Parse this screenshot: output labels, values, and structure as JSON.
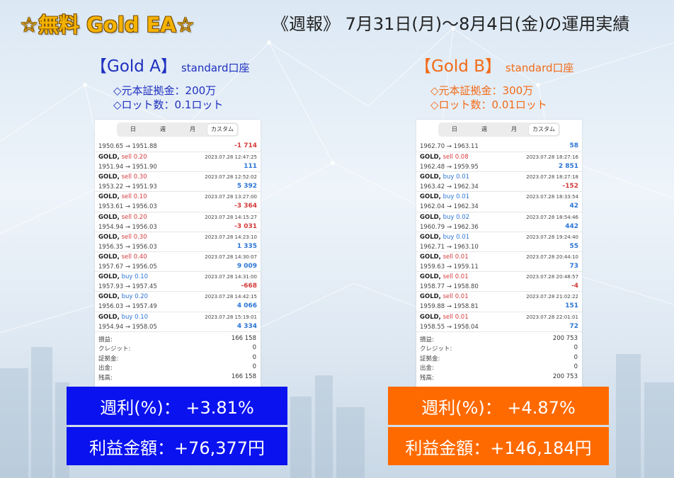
{
  "header": {
    "title_left": "☆無料 Gold EA☆",
    "title_right": "《週報》 7月31日(月)～8月4日(金)の運用実績"
  },
  "colors": {
    "gold_a": "#1e2fbf",
    "gold_b": "#f26a17",
    "box_a": "#0a12f0",
    "box_b": "#ff6a00"
  },
  "accounts": [
    {
      "name": "【Gold A】",
      "type": "standard口座",
      "margin_line": "◇元本証拠金：200万",
      "lot_line": "◇ロット数：0.1ロット",
      "tabs": [
        "日",
        "週",
        "月",
        "カスタム"
      ],
      "first_partial": {
        "prices": "1950.65 → 1951.88",
        "profit": "-1 714"
      },
      "trades": [
        {
          "symbol": "GOLD,",
          "side": "sell 0.20",
          "dir": "sell",
          "datetime": "2023.07.28 12:47:25",
          "prices": "1951.94 → 1951.90",
          "profit": "111"
        },
        {
          "symbol": "GOLD,",
          "side": "sell 0.30",
          "dir": "sell",
          "datetime": "2023.07.28 12:52:02",
          "prices": "1953.22 → 1951.93",
          "profit": "5 392"
        },
        {
          "symbol": "GOLD,",
          "side": "sell 0.10",
          "dir": "sell",
          "datetime": "2023.07.28 13:27:00",
          "prices": "1953.61 → 1956.03",
          "profit": "-3 364"
        },
        {
          "symbol": "GOLD,",
          "side": "sell 0.20",
          "dir": "sell",
          "datetime": "2023.07.28 14:15:27",
          "prices": "1954.94 → 1956.03",
          "profit": "-3 031"
        },
        {
          "symbol": "GOLD,",
          "side": "sell 0.30",
          "dir": "sell",
          "datetime": "2023.07.28 14:23:10",
          "prices": "1956.35 → 1956.03",
          "profit": "1 335"
        },
        {
          "symbol": "GOLD,",
          "side": "sell 0.40",
          "dir": "sell",
          "datetime": "2023.07.28 14:30:07",
          "prices": "1957.67 → 1956.05",
          "profit": "9 009"
        },
        {
          "symbol": "GOLD,",
          "side": "buy 0.10",
          "dir": "buy",
          "datetime": "2023.07.28 14:31:00",
          "prices": "1957.93 → 1957.45",
          "profit": "-668"
        },
        {
          "symbol": "GOLD,",
          "side": "buy 0.20",
          "dir": "buy",
          "datetime": "2023.07.28 14:42:15",
          "prices": "1956.03 → 1957.49",
          "profit": "4 066"
        },
        {
          "symbol": "GOLD,",
          "side": "buy 0.10",
          "dir": "buy",
          "datetime": "2023.07.28 15:19:01",
          "prices": "1954.94 → 1958.05",
          "profit": "4 334"
        }
      ],
      "summary": [
        {
          "label": "損益:",
          "value": "166 158"
        },
        {
          "label": "クレジット:",
          "value": "0"
        },
        {
          "label": "証拠金:",
          "value": "0"
        },
        {
          "label": "出金:",
          "value": "0"
        },
        {
          "label": "残高:",
          "value": "166 158"
        }
      ],
      "weekly_rate": "週利(%)： +3.81%",
      "profit_amount": "利益金額：+76,377円"
    },
    {
      "name": "【Gold B】",
      "type": "standard口座",
      "margin_line": "◇元本証拠金：300万",
      "lot_line": "◇ロット数：0.01ロット",
      "tabs": [
        "日",
        "週",
        "月",
        "カスタム"
      ],
      "first_partial": {
        "prices": "1962.70 → 1963.11",
        "profit": "58"
      },
      "trades": [
        {
          "symbol": "GOLD,",
          "side": "sell 0.08",
          "dir": "sell",
          "datetime": "2023.07.28 18:27:16",
          "prices": "1962.48 → 1959.95",
          "profit": "2 851"
        },
        {
          "symbol": "GOLD,",
          "side": "buy 0.01",
          "dir": "buy",
          "datetime": "2023.07.28 18:27:18",
          "prices": "1963.42 → 1962.34",
          "profit": "-152"
        },
        {
          "symbol": "GOLD,",
          "side": "buy 0.01",
          "dir": "buy",
          "datetime": "2023.07.28 18:33:54",
          "prices": "1962.04 → 1962.34",
          "profit": "42"
        },
        {
          "symbol": "GOLD,",
          "side": "buy 0.02",
          "dir": "buy",
          "datetime": "2023.07.28 18:54:46",
          "prices": "1960.79 → 1962.36",
          "profit": "442"
        },
        {
          "symbol": "GOLD,",
          "side": "buy 0.01",
          "dir": "buy",
          "datetime": "2023.07.28 19:24:40",
          "prices": "1962.71 → 1963.10",
          "profit": "55"
        },
        {
          "symbol": "GOLD,",
          "side": "sell 0.01",
          "dir": "sell",
          "datetime": "2023.07.28 20:44:10",
          "prices": "1959.63 → 1959.11",
          "profit": "73"
        },
        {
          "symbol": "GOLD,",
          "side": "sell 0.01",
          "dir": "sell",
          "datetime": "2023.07.28 20:48:57",
          "prices": "1958.77 → 1958.80",
          "profit": "-4"
        },
        {
          "symbol": "GOLD,",
          "side": "sell 0.01",
          "dir": "sell",
          "datetime": "2023.07.28 21:02:22",
          "prices": "1959.88 → 1958.81",
          "profit": "151"
        },
        {
          "symbol": "GOLD,",
          "side": "sell 0.01",
          "dir": "sell",
          "datetime": "2023.07.28 22:01:01",
          "prices": "1958.55 → 1958.04",
          "profit": "72"
        }
      ],
      "summary": [
        {
          "label": "損益:",
          "value": "200 753"
        },
        {
          "label": "クレジット:",
          "value": "0"
        },
        {
          "label": "証拠金:",
          "value": "0"
        },
        {
          "label": "出金:",
          "value": "0"
        },
        {
          "label": "残高:",
          "value": "200 753"
        }
      ],
      "weekly_rate": "週利(%)： +4.87%",
      "profit_amount": "利益金額：+146,184円"
    }
  ]
}
